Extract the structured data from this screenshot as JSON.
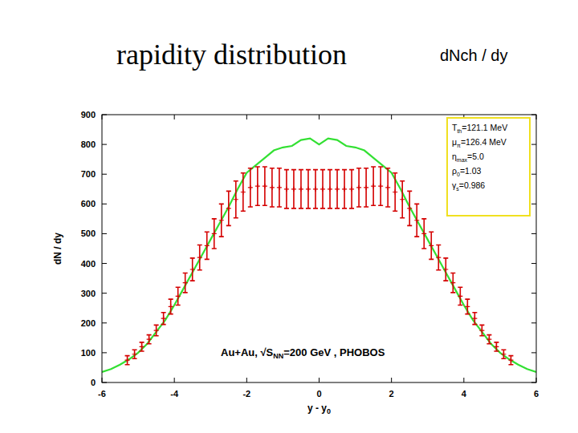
{
  "chart_data": {
    "type": "line",
    "title": "rapidity distribution",
    "subtitle": "dNch / dy",
    "y_label": "dN / dy",
    "x_label": {
      "text": "y - y",
      "sub": "0"
    },
    "annotation": {
      "text": "Au+Au, √S",
      "sub": "NN",
      "rest": "=200 GeV , PHOBOS"
    },
    "parameters": [
      {
        "base": "T",
        "sub": "th",
        "rest": "=121.1 MeV"
      },
      {
        "base": "μ",
        "sub": "π",
        "rest": "=126.4 MeV"
      },
      {
        "base": "η",
        "sub": "max",
        "rest": "=5.0"
      },
      {
        "base": "ρ",
        "sub": "0",
        "rest": "=1.03"
      },
      {
        "base": "γ",
        "sub": "s",
        "rest": "=0.986"
      }
    ],
    "xlim": [
      -6,
      6
    ],
    "xticks": [
      -6,
      -4,
      -2,
      0,
      2,
      4,
      6
    ],
    "ylim": [
      0,
      900
    ],
    "yticks": [
      0,
      100,
      200,
      300,
      400,
      500,
      600,
      700,
      800,
      900
    ],
    "grid": false,
    "series": [
      {
        "type": "line",
        "color": "#33e033",
        "line_style": "solid",
        "x": [
          -6,
          -5.75,
          -5.5,
          -5.25,
          -5,
          -4.75,
          -4.5,
          -4.25,
          -4,
          -3.75,
          -3.5,
          -3.25,
          -3,
          -2.75,
          -2.5,
          -2.25,
          -2,
          -1.75,
          -1.5,
          -1.25,
          -1,
          -0.75,
          -0.5,
          -0.25,
          0,
          0.25,
          0.5,
          0.75,
          1,
          1.25,
          1.5,
          1.75,
          2,
          2.25,
          2.5,
          2.75,
          3,
          3.25,
          3.5,
          3.75,
          4,
          4.25,
          4.5,
          4.75,
          5,
          5.25,
          5.5,
          5.75,
          6
        ],
        "values": [
          35,
          45,
          60,
          78,
          100,
          130,
          170,
          210,
          260,
          315,
          370,
          425,
          480,
          535,
          590,
          650,
          705,
          730,
          755,
          780,
          790,
          795,
          815,
          820,
          800,
          820,
          815,
          795,
          790,
          780,
          755,
          730,
          705,
          650,
          590,
          535,
          480,
          425,
          370,
          315,
          260,
          210,
          170,
          130,
          100,
          78,
          60,
          45,
          35
        ]
      },
      {
        "type": "scatter",
        "color": "#d40000",
        "marker": "plus",
        "x": [
          -5.3,
          -5.1,
          -4.9,
          -4.7,
          -4.5,
          -4.3,
          -4.1,
          -3.9,
          -3.7,
          -3.5,
          -3.3,
          -3.1,
          -2.9,
          -2.7,
          -2.5,
          -2.3,
          -2.1,
          -1.9,
          -1.7,
          -1.5,
          -1.3,
          -1.1,
          -0.9,
          -0.7,
          -0.5,
          -0.3,
          -0.1,
          0.1,
          0.3,
          0.5,
          0.7,
          0.9,
          1.1,
          1.3,
          1.5,
          1.7,
          1.9,
          2.1,
          2.3,
          2.5,
          2.7,
          2.9,
          3.1,
          3.3,
          3.5,
          3.7,
          3.9,
          4.1,
          4.3,
          4.5,
          4.7,
          4.9,
          5.1,
          5.3
        ],
        "values": [
          75,
          95,
          120,
          145,
          175,
          215,
          255,
          290,
          335,
          380,
          420,
          460,
          500,
          545,
          585,
          615,
          640,
          655,
          660,
          660,
          655,
          655,
          650,
          650,
          650,
          650,
          650,
          650,
          650,
          650,
          650,
          650,
          655,
          655,
          660,
          660,
          655,
          640,
          615,
          585,
          545,
          500,
          460,
          420,
          380,
          335,
          290,
          255,
          215,
          175,
          145,
          120,
          95,
          75
        ],
        "errors": [
          15,
          15,
          15,
          15,
          18,
          20,
          25,
          30,
          33,
          38,
          42,
          46,
          50,
          55,
          58,
          62,
          64,
          65,
          65,
          65,
          65,
          65,
          65,
          65,
          65,
          65,
          65,
          65,
          65,
          65,
          65,
          65,
          65,
          65,
          65,
          65,
          65,
          64,
          62,
          58,
          55,
          50,
          46,
          42,
          38,
          33,
          30,
          25,
          20,
          18,
          15,
          15,
          15,
          15
        ]
      }
    ]
  }
}
